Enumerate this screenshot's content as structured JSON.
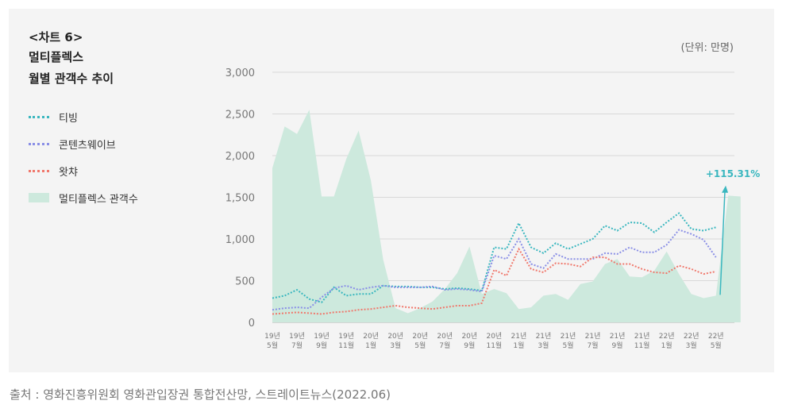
{
  "chart_data": {
    "type": "line",
    "title_lines": [
      "<차트 6>",
      "멀티플렉스",
      "월별 관객수 추이"
    ],
    "unit": "(단위: 만명)",
    "source": "출처 : 영화진흥위원회 영화관입장권 통합전산망, 스트레이트뉴스(2022.06)",
    "ylim": [
      0,
      3000
    ],
    "yticks": [
      0,
      500,
      1000,
      1500,
      2000,
      2500,
      3000
    ],
    "ytick_labels": [
      "0",
      "500",
      "1,000",
      "1,500",
      "2,000",
      "2,500",
      "3,000"
    ],
    "x_labels": [
      [
        "19년",
        "5월"
      ],
      [
        "19년",
        "7월"
      ],
      [
        "19년",
        "9월"
      ],
      [
        "19년",
        "11월"
      ],
      [
        "20년",
        "1월"
      ],
      [
        "20년",
        "3월"
      ],
      [
        "20년",
        "5월"
      ],
      [
        "20년",
        "7월"
      ],
      [
        "20년",
        "9월"
      ],
      [
        "20년",
        "11월"
      ],
      [
        "21년",
        "1월"
      ],
      [
        "21년",
        "3월"
      ],
      [
        "21년",
        "5월"
      ],
      [
        "21년",
        "7월"
      ],
      [
        "21년",
        "9월"
      ],
      [
        "21년",
        "11월"
      ],
      [
        "22년",
        "1월"
      ],
      [
        "22년",
        "3월"
      ],
      [
        "22년",
        "5월"
      ]
    ],
    "x_range": [
      0,
      37.5
    ],
    "area_series": {
      "name": "멀티플렉스 관객수",
      "color": "#cde9dd",
      "values": [
        1850,
        2350,
        2260,
        2550,
        1510,
        1510,
        1960,
        2300,
        1700,
        750,
        170,
        110,
        170,
        250,
        400,
        590,
        910,
        340,
        400,
        350,
        160,
        180,
        320,
        340,
        270,
        460,
        490,
        700,
        760,
        550,
        540,
        620,
        850,
        580,
        340,
        290,
        320,
        1520,
        1510
      ]
    },
    "series": [
      {
        "name": "티빙",
        "color": "#3ab7bf",
        "x_start": 0,
        "values": [
          290,
          320,
          390,
          280,
          240,
          420,
          320,
          340,
          340,
          440,
          430,
          430,
          420,
          420,
          400,
          410,
          400,
          380,
          900,
          880,
          1190,
          900,
          830,
          950,
          880,
          940,
          1000,
          1160,
          1100,
          1200,
          1190,
          1080,
          1200,
          1310,
          1120,
          1100,
          1140
        ]
      },
      {
        "name": "콘텐츠웨이브",
        "color": "#8a8fe6",
        "x_start": 0,
        "values": [
          150,
          170,
          180,
          170,
          300,
          410,
          440,
          390,
          420,
          440,
          420,
          420,
          420,
          430,
          390,
          400,
          390,
          370,
          800,
          760,
          1000,
          700,
          650,
          820,
          760,
          760,
          760,
          830,
          820,
          900,
          840,
          840,
          930,
          1110,
          1060,
          990,
          780
        ]
      },
      {
        "name": "왓챠",
        "color": "#f0786c",
        "x_start": 0,
        "values": [
          100,
          110,
          120,
          110,
          100,
          120,
          130,
          150,
          160,
          180,
          200,
          180,
          170,
          160,
          180,
          200,
          200,
          230,
          630,
          560,
          880,
          640,
          600,
          710,
          700,
          670,
          780,
          780,
          700,
          700,
          640,
          600,
          590,
          680,
          640,
          580,
          610
        ]
      }
    ],
    "annotation": {
      "text": "+115.31%",
      "color": "#3ab7bf",
      "from_value": 330,
      "to_value": 1640,
      "x": 36.6
    }
  }
}
